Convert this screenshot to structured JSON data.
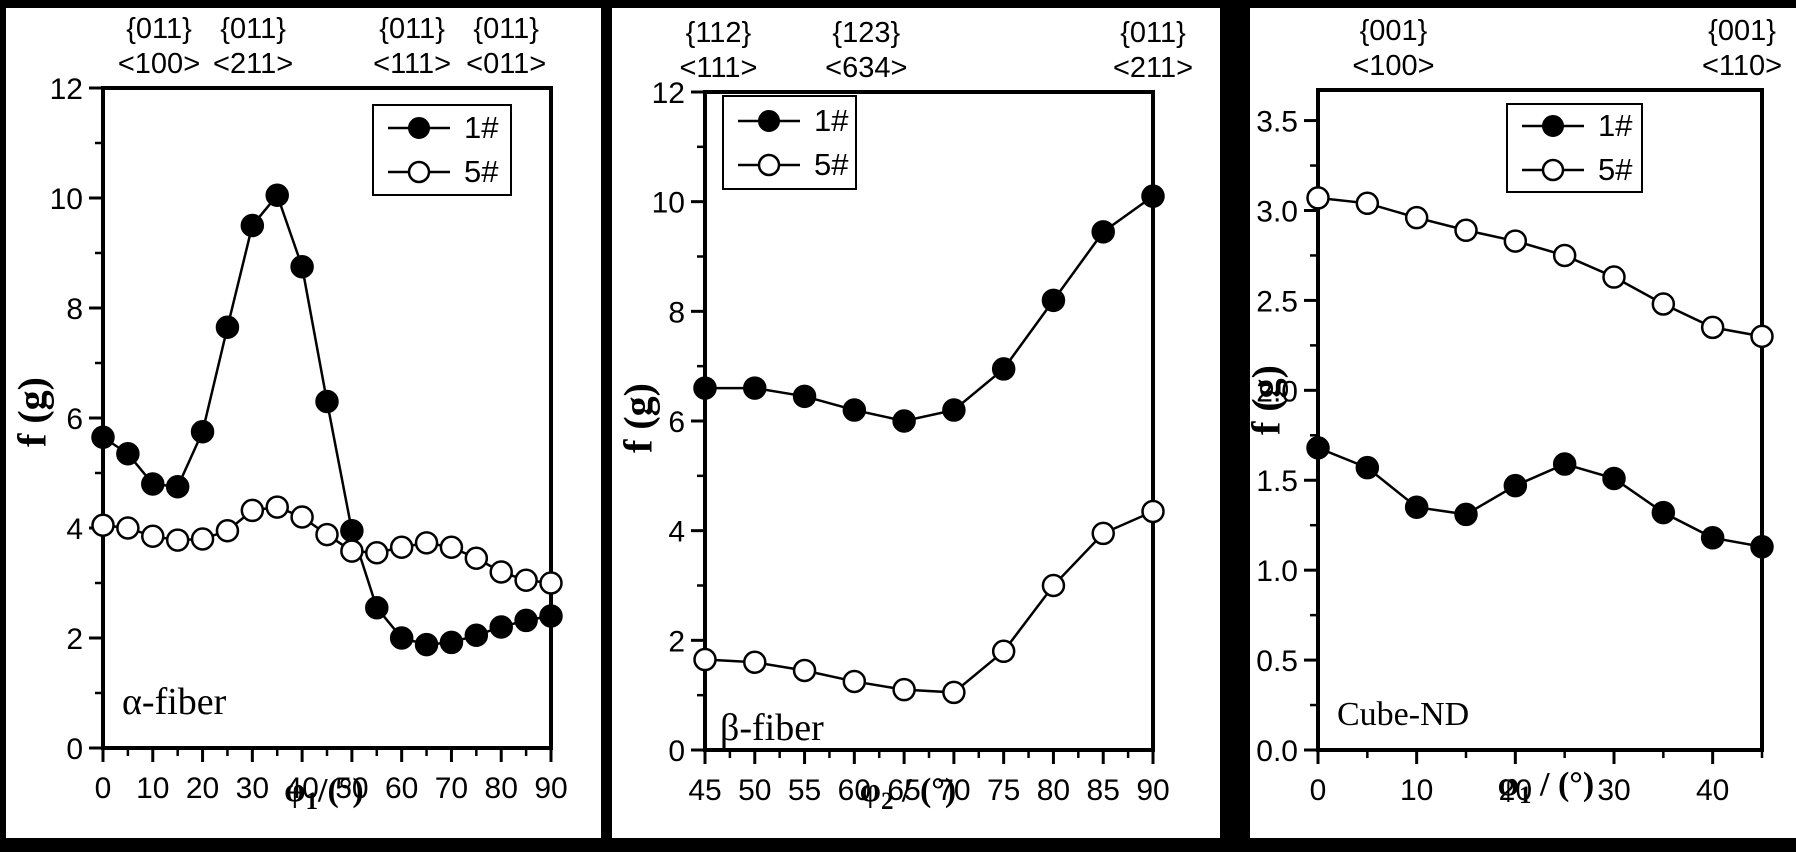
{
  "figure": {
    "background": "#000000",
    "panel_background": "#ffffff",
    "ink_color": "#000000",
    "description_labels": [
      "α-fiber",
      "β-fiber",
      "Cube-ND"
    ]
  },
  "chart_data": [
    {
      "type": "line",
      "panel_label": "α-fiber",
      "ylabel": "f (g)",
      "xlabel": "φ1/(°)",
      "xlabel_parts": {
        "sym": "φ",
        "sub": "1",
        "rest": "/(°)"
      },
      "xlim": [
        0,
        90
      ],
      "ylim": [
        0,
        12
      ],
      "grid": false,
      "legend_position": "top-center",
      "xticks": [
        0,
        10,
        20,
        30,
        40,
        50,
        60,
        70,
        80,
        90
      ],
      "xtick_labels": [
        "0",
        "10",
        "20",
        "30",
        "40",
        "50",
        "60",
        "70",
        "80",
        "90"
      ],
      "xticks_minor": [
        5,
        15,
        25,
        35,
        45,
        55,
        65,
        75,
        85
      ],
      "yticks": [
        0,
        2,
        4,
        6,
        8,
        10,
        12
      ],
      "ytick_labels": [
        "0",
        "2",
        "4",
        "6",
        "8",
        "10",
        "12"
      ],
      "yticks_minor": [
        1,
        3,
        5,
        7,
        9,
        11
      ],
      "top_labels": [
        {
          "plane": "{011}",
          "direction": "<100>",
          "frac": 0.125
        },
        {
          "plane": "{011}",
          "direction": "<211>",
          "frac": 0.335
        },
        {
          "plane": "{011}",
          "direction": "<111>",
          "frac": 0.69
        },
        {
          "plane": "{011}",
          "direction": "<011>",
          "frac": 0.9
        }
      ],
      "x": [
        0,
        5,
        10,
        15,
        20,
        25,
        30,
        35,
        40,
        45,
        50,
        55,
        60,
        65,
        70,
        75,
        80,
        85,
        90
      ],
      "series": [
        {
          "name": "1#",
          "marker": "filled",
          "values": [
            5.65,
            5.35,
            4.8,
            4.75,
            5.75,
            7.65,
            9.5,
            10.05,
            8.75,
            6.3,
            3.95,
            2.55,
            2.0,
            1.88,
            1.92,
            2.05,
            2.2,
            2.32,
            2.4
          ]
        },
        {
          "name": "5#",
          "marker": "open",
          "values": [
            4.05,
            4.0,
            3.85,
            3.78,
            3.8,
            3.95,
            4.32,
            4.38,
            4.2,
            3.88,
            3.58,
            3.55,
            3.65,
            3.73,
            3.65,
            3.45,
            3.2,
            3.05,
            3.0
          ]
        }
      ]
    },
    {
      "type": "line",
      "panel_label": "β-fiber",
      "ylabel": "f (g)",
      "xlabel": "φ2 / (°)",
      "xlabel_parts": {
        "sym": "φ",
        "sub": "2",
        "rest": " / (°)"
      },
      "xlim": [
        45,
        90
      ],
      "ylim": [
        0,
        12
      ],
      "grid": false,
      "legend_position": "top-left",
      "xticks": [
        45,
        50,
        55,
        60,
        65,
        70,
        75,
        80,
        85,
        90
      ],
      "xtick_labels": [
        "45",
        "50",
        "55",
        "60",
        "65",
        "70",
        "75",
        "80",
        "85",
        "90"
      ],
      "xticks_minor": [
        47.5,
        52.5,
        57.5,
        62.5,
        67.5,
        72.5,
        77.5,
        82.5,
        87.5
      ],
      "yticks": [
        0,
        2,
        4,
        6,
        8,
        10,
        12
      ],
      "ytick_labels": [
        "0",
        "2",
        "4",
        "6",
        "8",
        "10",
        "12"
      ],
      "yticks_minor": [
        1,
        3,
        5,
        7,
        9,
        11
      ],
      "top_labels": [
        {
          "plane": "{112}",
          "direction": "<111>",
          "frac": 0.03
        },
        {
          "plane": "{123}",
          "direction": "<634>",
          "frac": 0.36
        },
        {
          "plane": "{011}",
          "direction": "<211>",
          "frac": 1.0
        }
      ],
      "x": [
        45,
        50,
        55,
        60,
        65,
        70,
        75,
        80,
        85,
        90
      ],
      "series": [
        {
          "name": "1#",
          "marker": "filled",
          "values": [
            6.6,
            6.6,
            6.45,
            6.2,
            6.0,
            6.2,
            6.95,
            8.2,
            9.45,
            10.1
          ]
        },
        {
          "name": "5#",
          "marker": "open",
          "values": [
            1.65,
            1.6,
            1.45,
            1.25,
            1.1,
            1.05,
            1.8,
            3.0,
            3.95,
            4.35
          ]
        }
      ]
    },
    {
      "type": "line",
      "panel_label": "Cube-ND",
      "ylabel": "f (g)",
      "xlabel": "φ1 / (°)",
      "xlabel_parts": {
        "sym": "φ",
        "sub": "1",
        "rest": " / (°)"
      },
      "xlim": [
        0,
        45
      ],
      "ylim": [
        0,
        3.67
      ],
      "grid": false,
      "legend_position": "top-center",
      "xticks": [
        0,
        10,
        20,
        30,
        40
      ],
      "xtick_labels": [
        "0",
        "10",
        "20",
        "30",
        "40"
      ],
      "xticks_minor": [
        5,
        15,
        25,
        35,
        45
      ],
      "yticks": [
        0,
        0.5,
        1,
        1.5,
        2,
        2.5,
        3,
        3.5
      ],
      "ytick_labels": [
        "0.0",
        "0.5",
        "1.0",
        "1.5",
        "2.0",
        "2.5",
        "3.0",
        "3.5"
      ],
      "yticks_minor": [
        0.25,
        0.75,
        1.25,
        1.75,
        2.25,
        2.75,
        3.25
      ],
      "top_labels": [
        {
          "plane": "{001}",
          "direction": "<100>",
          "frac": 0.17
        },
        {
          "plane": "{001}",
          "direction": "<110>",
          "frac": 0.955
        }
      ],
      "x": [
        0,
        5,
        10,
        15,
        20,
        25,
        30,
        35,
        40,
        45
      ],
      "series": [
        {
          "name": "1#",
          "marker": "filled",
          "values": [
            1.68,
            1.57,
            1.35,
            1.31,
            1.47,
            1.59,
            1.51,
            1.32,
            1.18,
            1.13
          ]
        },
        {
          "name": "5#",
          "marker": "open",
          "values": [
            3.07,
            3.04,
            2.96,
            2.89,
            2.83,
            2.75,
            2.63,
            2.48,
            2.35,
            2.3
          ]
        }
      ]
    }
  ]
}
